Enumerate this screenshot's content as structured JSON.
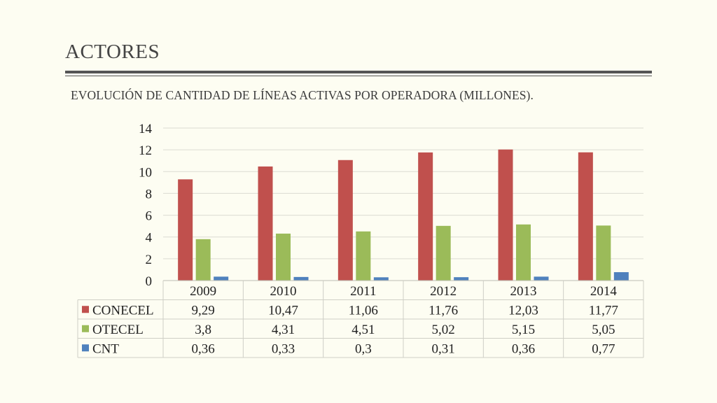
{
  "slide": {
    "title": "ACTORES",
    "subtitle": "EVOLUCIÓN DE CANTIDAD DE LÍNEAS ACTIVAS POR OPERADORA (MILLONES)."
  },
  "chart_data": {
    "type": "bar",
    "categories": [
      "2009",
      "2010",
      "2011",
      "2012",
      "2013",
      "2014"
    ],
    "series": [
      {
        "name": "CONECEL",
        "color": "#c0504d",
        "values": [
          9.29,
          10.47,
          11.06,
          11.76,
          12.03,
          11.77
        ],
        "labels": [
          "9,29",
          "10,47",
          "11,06",
          "11,76",
          "12,03",
          "11,77"
        ]
      },
      {
        "name": "OTECEL",
        "color": "#9bbb59",
        "values": [
          3.8,
          4.31,
          4.51,
          5.02,
          5.15,
          5.05
        ],
        "labels": [
          "3,8",
          "4,31",
          "4,51",
          "5,02",
          "5,15",
          "5,05"
        ]
      },
      {
        "name": "CNT",
        "color": "#4f81bd",
        "values": [
          0.36,
          0.33,
          0.3,
          0.31,
          0.36,
          0.77
        ],
        "labels": [
          "0,36",
          "0,33",
          "0,3",
          "0,31",
          "0,36",
          "0,77"
        ]
      }
    ],
    "ylim": [
      0,
      14
    ],
    "yticks": [
      "0",
      "2",
      "4",
      "6",
      "8",
      "10",
      "12",
      "14"
    ],
    "grid": true,
    "legend": "data-table"
  }
}
